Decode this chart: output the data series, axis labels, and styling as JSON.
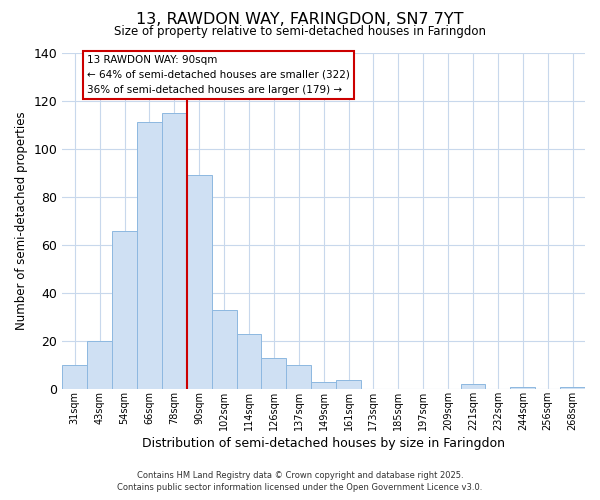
{
  "title": "13, RAWDON WAY, FARINGDON, SN7 7YT",
  "subtitle": "Size of property relative to semi-detached houses in Faringdon",
  "xlabel": "Distribution of semi-detached houses by size in Faringdon",
  "ylabel": "Number of semi-detached properties",
  "bin_labels": [
    "31sqm",
    "43sqm",
    "54sqm",
    "66sqm",
    "78sqm",
    "90sqm",
    "102sqm",
    "114sqm",
    "126sqm",
    "137sqm",
    "149sqm",
    "161sqm",
    "173sqm",
    "185sqm",
    "197sqm",
    "209sqm",
    "221sqm",
    "232sqm",
    "244sqm",
    "256sqm",
    "268sqm"
  ],
  "bar_heights": [
    10,
    20,
    66,
    111,
    115,
    89,
    33,
    23,
    13,
    10,
    3,
    4,
    0,
    0,
    0,
    0,
    2,
    0,
    1,
    0,
    1
  ],
  "bar_color": "#cfe0f3",
  "bar_edge_color": "#8db8e0",
  "vline_index": 5,
  "vline_color": "#cc0000",
  "annotation_title": "13 RAWDON WAY: 90sqm",
  "annotation_line1": "← 64% of semi-detached houses are smaller (322)",
  "annotation_line2": "36% of semi-detached houses are larger (179) →",
  "annotation_box_color": "#ffffff",
  "annotation_box_edge": "#cc0000",
  "ylim": [
    0,
    140
  ],
  "yticks": [
    0,
    20,
    40,
    60,
    80,
    100,
    120,
    140
  ],
  "footer_line1": "Contains HM Land Registry data © Crown copyright and database right 2025.",
  "footer_line2": "Contains public sector information licensed under the Open Government Licence v3.0.",
  "bg_color": "#ffffff",
  "grid_color": "#c8d8ec"
}
